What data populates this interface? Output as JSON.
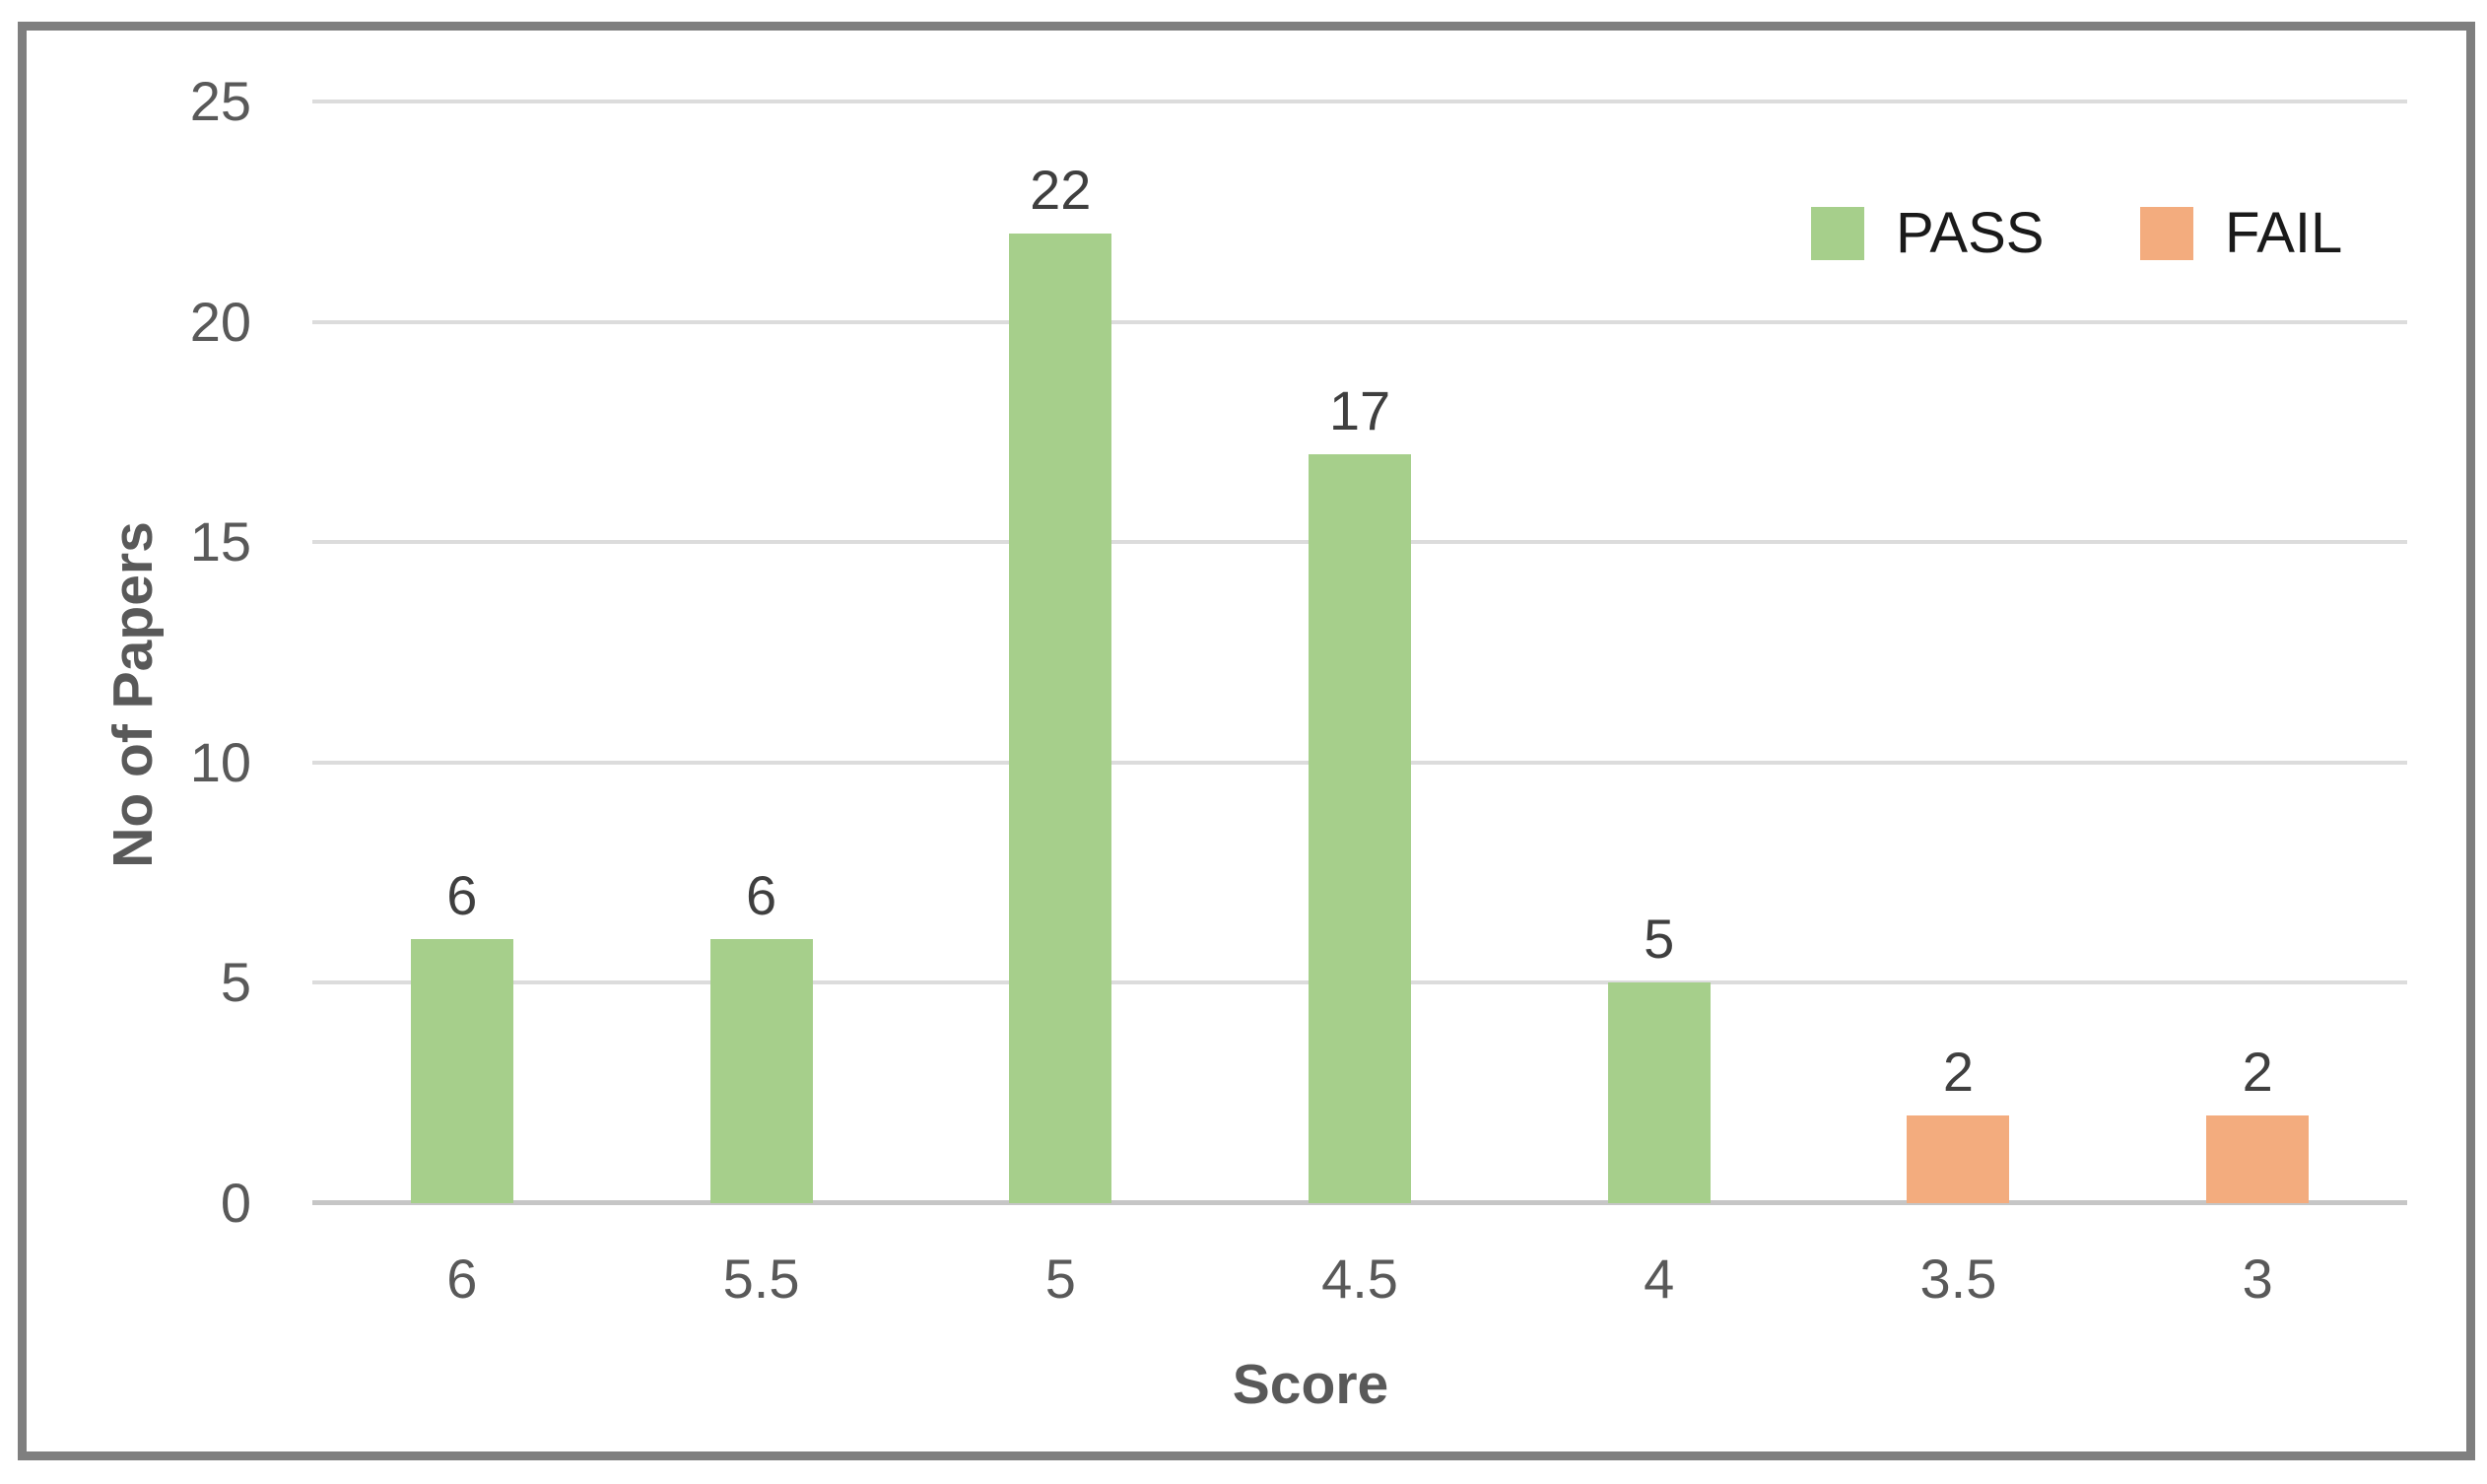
{
  "chart_data": {
    "type": "bar",
    "title": "",
    "xlabel": "Score",
    "ylabel": "No of Papers",
    "categories": [
      "6",
      "5.5",
      "5",
      "4.5",
      "4",
      "3.5",
      "3"
    ],
    "series": [
      {
        "name": "PASS",
        "color": "#A6CF8B",
        "values": [
          6,
          6,
          22,
          17,
          5,
          null,
          null
        ]
      },
      {
        "name": "FAIL",
        "color": "#F3AC7E",
        "values": [
          null,
          null,
          null,
          null,
          null,
          2,
          2
        ]
      }
    ],
    "data_labels": [
      "6",
      "6",
      "22",
      "17",
      "5",
      "2",
      "2"
    ],
    "ylim": [
      0,
      25
    ],
    "y_ticks": [
      0,
      5,
      10,
      15,
      20,
      25
    ],
    "grid": true,
    "legend_position": "top-right",
    "colors": {
      "pass": "#A6CF8B",
      "fail": "#F3AC7E",
      "gridline": "#DCDCDC",
      "axis_line": "#C6C6C6",
      "tick_text": "#595959",
      "data_label_text": "#3F3F3F",
      "legend_text": "#1A1A1A",
      "frame_border": "#7F7F7F"
    }
  },
  "legend": {
    "items": [
      {
        "label": "PASS",
        "color": "#A6CF8B"
      },
      {
        "label": "FAIL",
        "color": "#F3AC7E"
      }
    ]
  },
  "axes": {
    "x_title": "Score",
    "y_title": "No of Papers"
  }
}
